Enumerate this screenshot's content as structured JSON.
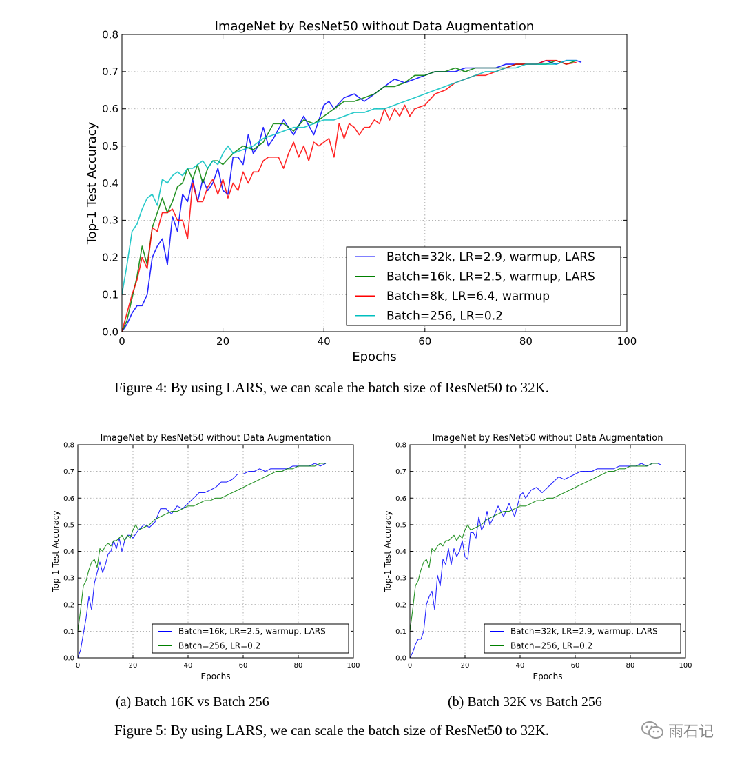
{
  "captions": {
    "fig4": "Figure 4: By using LARS, we can scale the batch size of ResNet50 to 32K.",
    "fig5a": "(a) Batch 16K vs Batch 256",
    "fig5b": "(b) Batch 32K vs Batch 256",
    "fig5": "Figure 5: By using LARS, we can scale the batch size of ResNet50 to 32K."
  },
  "watermark": {
    "text": "雨石记",
    "icon": "wechat-icon"
  },
  "colors": {
    "blue": "#0000ff",
    "green": "#008000",
    "red": "#ff0000",
    "cyan": "#00bfbf"
  },
  "chart_data": [
    {
      "type": "line",
      "title": "ImageNet by ResNet50 without Data Augmentation",
      "xlabel": "Epochs",
      "ylabel": "Top-1 Test Accuracy",
      "xlim": [
        0,
        100
      ],
      "ylim": [
        0.0,
        0.8
      ],
      "xticks": [
        "0",
        "20",
        "40",
        "60",
        "80",
        "100"
      ],
      "yticks": [
        "0.0",
        "0.1",
        "0.2",
        "0.3",
        "0.4",
        "0.5",
        "0.6",
        "0.7",
        "0.8"
      ],
      "grid": true,
      "legend_position": "lower-right",
      "series": [
        {
          "name": "Batch=32k, LR=2.9, warmup, LARS",
          "color": "#0000ff",
          "x": [
            0,
            1,
            2,
            3,
            4,
            5,
            6,
            7,
            8,
            9,
            10,
            11,
            12,
            13,
            14,
            15,
            16,
            17,
            18,
            19,
            20,
            21,
            22,
            23,
            24,
            25,
            26,
            27,
            28,
            29,
            30,
            32,
            34,
            36,
            38,
            40,
            41,
            42,
            44,
            46,
            48,
            50,
            52,
            54,
            56,
            58,
            60,
            62,
            64,
            66,
            68,
            70,
            72,
            74,
            76,
            78,
            80,
            82,
            84,
            86,
            88,
            90,
            91
          ],
          "y": [
            0.0,
            0.02,
            0.05,
            0.07,
            0.07,
            0.1,
            0.2,
            0.23,
            0.25,
            0.18,
            0.31,
            0.27,
            0.37,
            0.35,
            0.41,
            0.35,
            0.41,
            0.38,
            0.4,
            0.44,
            0.38,
            0.37,
            0.47,
            0.47,
            0.45,
            0.53,
            0.48,
            0.5,
            0.55,
            0.5,
            0.52,
            0.57,
            0.53,
            0.58,
            0.53,
            0.61,
            0.62,
            0.6,
            0.63,
            0.64,
            0.62,
            0.64,
            0.66,
            0.68,
            0.67,
            0.68,
            0.69,
            0.7,
            0.7,
            0.7,
            0.71,
            0.71,
            0.71,
            0.71,
            0.72,
            0.72,
            0.72,
            0.72,
            0.73,
            0.72,
            0.73,
            0.73,
            0.725
          ]
        },
        {
          "name": "Batch=16k, LR=2.5, warmup, LARS",
          "color": "#008000",
          "x": [
            0,
            1,
            2,
            3,
            4,
            5,
            6,
            7,
            8,
            9,
            10,
            11,
            12,
            13,
            14,
            15,
            16,
            17,
            18,
            19,
            20,
            22,
            24,
            26,
            28,
            30,
            32,
            34,
            36,
            38,
            40,
            42,
            44,
            46,
            48,
            50,
            52,
            54,
            56,
            58,
            60,
            62,
            64,
            66,
            68,
            70,
            72,
            74,
            76,
            78,
            80,
            82,
            84,
            86,
            88,
            90
          ],
          "y": [
            0.0,
            0.03,
            0.09,
            0.15,
            0.23,
            0.18,
            0.28,
            0.32,
            0.36,
            0.32,
            0.35,
            0.39,
            0.4,
            0.44,
            0.41,
            0.45,
            0.4,
            0.44,
            0.46,
            0.46,
            0.45,
            0.48,
            0.5,
            0.49,
            0.51,
            0.56,
            0.56,
            0.54,
            0.57,
            0.56,
            0.58,
            0.6,
            0.62,
            0.62,
            0.63,
            0.64,
            0.66,
            0.66,
            0.67,
            0.69,
            0.69,
            0.7,
            0.7,
            0.71,
            0.7,
            0.71,
            0.71,
            0.71,
            0.71,
            0.72,
            0.72,
            0.72,
            0.72,
            0.73,
            0.72,
            0.73
          ]
        },
        {
          "name": "Batch=8k, LR=6.4, warmup",
          "color": "#ff0000",
          "x": [
            0,
            1,
            2,
            3,
            4,
            5,
            6,
            7,
            8,
            9,
            10,
            11,
            12,
            13,
            14,
            15,
            16,
            17,
            18,
            19,
            20,
            21,
            22,
            23,
            24,
            25,
            26,
            27,
            28,
            29,
            30,
            31,
            32,
            33,
            34,
            35,
            36,
            37,
            38,
            39,
            40,
            41,
            42,
            43,
            44,
            45,
            46,
            47,
            48,
            49,
            50,
            51,
            52,
            53,
            54,
            55,
            56,
            57,
            58,
            60,
            62,
            64,
            66,
            68,
            70,
            72,
            74,
            76,
            78,
            80,
            82,
            84,
            86,
            88,
            90
          ],
          "y": [
            0.0,
            0.05,
            0.1,
            0.14,
            0.2,
            0.17,
            0.28,
            0.27,
            0.32,
            0.32,
            0.33,
            0.3,
            0.3,
            0.25,
            0.4,
            0.35,
            0.35,
            0.39,
            0.41,
            0.37,
            0.41,
            0.36,
            0.4,
            0.38,
            0.43,
            0.4,
            0.43,
            0.43,
            0.46,
            0.47,
            0.47,
            0.47,
            0.44,
            0.48,
            0.51,
            0.47,
            0.5,
            0.46,
            0.51,
            0.5,
            0.51,
            0.52,
            0.47,
            0.56,
            0.52,
            0.56,
            0.55,
            0.53,
            0.55,
            0.55,
            0.57,
            0.56,
            0.6,
            0.57,
            0.6,
            0.58,
            0.61,
            0.58,
            0.6,
            0.61,
            0.64,
            0.65,
            0.67,
            0.68,
            0.69,
            0.69,
            0.7,
            0.71,
            0.72,
            0.72,
            0.72,
            0.73,
            0.73,
            0.72,
            0.725
          ]
        },
        {
          "name": "Batch=256, LR=0.2",
          "color": "#00bfbf",
          "x": [
            0,
            1,
            2,
            3,
            4,
            5,
            6,
            7,
            8,
            9,
            10,
            11,
            12,
            13,
            14,
            15,
            16,
            17,
            18,
            19,
            20,
            21,
            22,
            24,
            26,
            28,
            30,
            32,
            34,
            36,
            38,
            40,
            42,
            44,
            46,
            48,
            50,
            52,
            54,
            56,
            58,
            60,
            62,
            64,
            66,
            68,
            70,
            72,
            74,
            76,
            78,
            80,
            82,
            84,
            86,
            88,
            90
          ],
          "y": [
            0.1,
            0.18,
            0.27,
            0.29,
            0.33,
            0.36,
            0.37,
            0.34,
            0.41,
            0.4,
            0.42,
            0.43,
            0.42,
            0.44,
            0.44,
            0.45,
            0.46,
            0.44,
            0.46,
            0.45,
            0.48,
            0.5,
            0.48,
            0.49,
            0.5,
            0.52,
            0.53,
            0.54,
            0.55,
            0.55,
            0.56,
            0.57,
            0.57,
            0.58,
            0.59,
            0.59,
            0.6,
            0.6,
            0.61,
            0.62,
            0.63,
            0.64,
            0.65,
            0.66,
            0.67,
            0.68,
            0.69,
            0.7,
            0.7,
            0.71,
            0.71,
            0.72,
            0.72,
            0.72,
            0.72,
            0.73,
            0.73
          ]
        }
      ]
    },
    {
      "type": "line",
      "title": "ImageNet by ResNet50 without Data Augmentation",
      "xlabel": "Epochs",
      "ylabel": "Top-1 Test Accuracy",
      "xlim": [
        0,
        100
      ],
      "ylim": [
        0.0,
        0.8
      ],
      "xticks": [
        "0",
        "20",
        "40",
        "60",
        "80",
        "100"
      ],
      "yticks": [
        "0.0",
        "0.1",
        "0.2",
        "0.3",
        "0.4",
        "0.5",
        "0.6",
        "0.7",
        "0.8"
      ],
      "grid": true,
      "legend_position": "lower-right",
      "series": [
        {
          "name": "Batch=16k, LR=2.5, warmup, LARS",
          "color": "#0000ff",
          "x": [
            0,
            1,
            2,
            3,
            4,
            5,
            6,
            7,
            8,
            9,
            10,
            11,
            12,
            13,
            14,
            15,
            16,
            17,
            18,
            19,
            20,
            22,
            24,
            26,
            28,
            30,
            32,
            34,
            36,
            38,
            40,
            42,
            44,
            46,
            48,
            50,
            52,
            54,
            56,
            58,
            60,
            62,
            64,
            66,
            68,
            70,
            72,
            74,
            76,
            78,
            80,
            82,
            84,
            86,
            88,
            90
          ],
          "y": [
            0.0,
            0.03,
            0.09,
            0.15,
            0.23,
            0.18,
            0.28,
            0.32,
            0.36,
            0.32,
            0.35,
            0.39,
            0.4,
            0.44,
            0.41,
            0.45,
            0.4,
            0.44,
            0.46,
            0.46,
            0.45,
            0.48,
            0.5,
            0.49,
            0.51,
            0.56,
            0.56,
            0.54,
            0.57,
            0.56,
            0.58,
            0.6,
            0.62,
            0.62,
            0.63,
            0.64,
            0.66,
            0.66,
            0.67,
            0.69,
            0.69,
            0.7,
            0.7,
            0.71,
            0.7,
            0.71,
            0.71,
            0.71,
            0.71,
            0.72,
            0.72,
            0.72,
            0.72,
            0.73,
            0.72,
            0.73
          ]
        },
        {
          "name": "Batch=256, LR=0.2",
          "color": "#008000",
          "x": [
            0,
            1,
            2,
            3,
            4,
            5,
            6,
            7,
            8,
            9,
            10,
            11,
            12,
            13,
            14,
            15,
            16,
            17,
            18,
            19,
            20,
            21,
            22,
            24,
            26,
            28,
            30,
            32,
            34,
            36,
            38,
            40,
            42,
            44,
            46,
            48,
            50,
            52,
            54,
            56,
            58,
            60,
            62,
            64,
            66,
            68,
            70,
            72,
            74,
            76,
            78,
            80,
            82,
            84,
            86,
            88,
            90
          ],
          "y": [
            0.1,
            0.18,
            0.27,
            0.29,
            0.33,
            0.36,
            0.37,
            0.34,
            0.41,
            0.4,
            0.42,
            0.43,
            0.42,
            0.44,
            0.44,
            0.45,
            0.46,
            0.44,
            0.46,
            0.45,
            0.48,
            0.5,
            0.48,
            0.49,
            0.5,
            0.52,
            0.53,
            0.54,
            0.55,
            0.55,
            0.56,
            0.57,
            0.57,
            0.58,
            0.59,
            0.59,
            0.6,
            0.6,
            0.61,
            0.62,
            0.63,
            0.64,
            0.65,
            0.66,
            0.67,
            0.68,
            0.69,
            0.7,
            0.7,
            0.71,
            0.71,
            0.72,
            0.72,
            0.72,
            0.72,
            0.73,
            0.73
          ]
        }
      ]
    },
    {
      "type": "line",
      "title": "ImageNet by ResNet50 without Data Augmentation",
      "xlabel": "Epochs",
      "ylabel": "Top-1 Test Accuracy",
      "xlim": [
        0,
        100
      ],
      "ylim": [
        0.0,
        0.8
      ],
      "xticks": [
        "0",
        "20",
        "40",
        "60",
        "80",
        "100"
      ],
      "yticks": [
        "0.0",
        "0.1",
        "0.2",
        "0.3",
        "0.4",
        "0.5",
        "0.6",
        "0.7",
        "0.8"
      ],
      "grid": true,
      "legend_position": "lower-right",
      "series": [
        {
          "name": "Batch=32k, LR=2.9, warmup, LARS",
          "color": "#0000ff",
          "x": [
            0,
            1,
            2,
            3,
            4,
            5,
            6,
            7,
            8,
            9,
            10,
            11,
            12,
            13,
            14,
            15,
            16,
            17,
            18,
            19,
            20,
            21,
            22,
            23,
            24,
            25,
            26,
            27,
            28,
            29,
            30,
            32,
            34,
            36,
            38,
            40,
            41,
            42,
            44,
            46,
            48,
            50,
            52,
            54,
            56,
            58,
            60,
            62,
            64,
            66,
            68,
            70,
            72,
            74,
            76,
            78,
            80,
            82,
            84,
            86,
            88,
            90,
            91
          ],
          "y": [
            0.0,
            0.02,
            0.05,
            0.07,
            0.07,
            0.1,
            0.2,
            0.23,
            0.25,
            0.18,
            0.31,
            0.27,
            0.37,
            0.35,
            0.41,
            0.35,
            0.41,
            0.38,
            0.4,
            0.44,
            0.38,
            0.37,
            0.47,
            0.47,
            0.45,
            0.53,
            0.48,
            0.5,
            0.55,
            0.5,
            0.52,
            0.57,
            0.53,
            0.58,
            0.53,
            0.61,
            0.62,
            0.6,
            0.63,
            0.64,
            0.62,
            0.64,
            0.66,
            0.68,
            0.67,
            0.68,
            0.69,
            0.7,
            0.7,
            0.7,
            0.71,
            0.71,
            0.71,
            0.71,
            0.72,
            0.72,
            0.72,
            0.72,
            0.73,
            0.72,
            0.73,
            0.73,
            0.725
          ]
        },
        {
          "name": "Batch=256, LR=0.2",
          "color": "#008000",
          "x": [
            0,
            1,
            2,
            3,
            4,
            5,
            6,
            7,
            8,
            9,
            10,
            11,
            12,
            13,
            14,
            15,
            16,
            17,
            18,
            19,
            20,
            21,
            22,
            24,
            26,
            28,
            30,
            32,
            34,
            36,
            38,
            40,
            42,
            44,
            46,
            48,
            50,
            52,
            54,
            56,
            58,
            60,
            62,
            64,
            66,
            68,
            70,
            72,
            74,
            76,
            78,
            80,
            82,
            84,
            86,
            88,
            90
          ],
          "y": [
            0.1,
            0.18,
            0.27,
            0.29,
            0.33,
            0.36,
            0.37,
            0.34,
            0.41,
            0.4,
            0.42,
            0.43,
            0.42,
            0.44,
            0.44,
            0.45,
            0.46,
            0.44,
            0.46,
            0.45,
            0.48,
            0.5,
            0.48,
            0.49,
            0.5,
            0.52,
            0.53,
            0.54,
            0.55,
            0.55,
            0.56,
            0.57,
            0.57,
            0.58,
            0.59,
            0.59,
            0.6,
            0.6,
            0.61,
            0.62,
            0.63,
            0.64,
            0.65,
            0.66,
            0.67,
            0.68,
            0.69,
            0.7,
            0.7,
            0.71,
            0.71,
            0.72,
            0.72,
            0.72,
            0.72,
            0.73,
            0.73
          ]
        }
      ]
    }
  ]
}
